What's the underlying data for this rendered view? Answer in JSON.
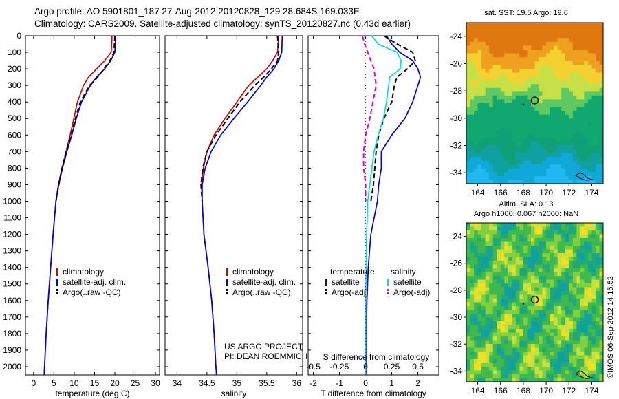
{
  "header": {
    "line1": "Argo profile: AO 5901801_187 27-Aug-2012 20120828_129 28.684S 169.033E",
    "line2": "Climatology: CARS2009. Satellite-adjusted climatology: synTS_20120827.nc (0.43d earlier)"
  },
  "stamp": "©IMOS 06-Sep-2012 14:15:52",
  "colors": {
    "red": "#e00000",
    "blue": "#0000e0",
    "black": "#000000",
    "cyan": "#00e0e0",
    "magenta": "#e000e0"
  },
  "chart_data": [
    {
      "type": "line",
      "name": "temperature",
      "xlabel": "temperature (deg C)",
      "ylabel": "",
      "xlim": [
        -2,
        31
      ],
      "ylim": [
        2050,
        0
      ],
      "xticks": [
        "0",
        "5",
        "10",
        "15",
        "20",
        "25",
        "30"
      ],
      "yticks": [
        "0",
        "100",
        "200",
        "300",
        "400",
        "500",
        "600",
        "700",
        "800",
        "900",
        "1000",
        "1100",
        "1200",
        "1300",
        "1400",
        "1500",
        "1600",
        "1700",
        "1800",
        "1900",
        "2000"
      ],
      "legend": [
        "climatology",
        "satellite-adj. clim.",
        "Argo(..raw -QC)"
      ],
      "series": [
        {
          "name": "climatology",
          "color": "red",
          "dash": false,
          "depth": [
            0,
            100,
            150,
            200,
            250,
            300,
            400,
            500,
            600,
            700,
            800,
            900,
            1000,
            1200,
            1400,
            1600,
            1800,
            2000,
            2050
          ],
          "values": [
            19.3,
            19.1,
            17.5,
            15.5,
            13.5,
            12.3,
            10.8,
            9.9,
            9.0,
            8.0,
            7.0,
            6.1,
            5.5,
            4.8,
            4.2,
            3.6,
            3.1,
            2.7,
            2.6
          ]
        },
        {
          "name": "satellite-adj. clim.",
          "color": "blue",
          "dash": false,
          "depth": [
            0,
            100,
            150,
            200,
            250,
            300,
            400,
            500,
            600,
            700,
            800,
            900,
            1000,
            1200,
            1400,
            1600,
            1800,
            2000,
            2050
          ],
          "values": [
            20.2,
            20.0,
            19.0,
            17.5,
            15.5,
            14.0,
            11.8,
            10.5,
            9.4,
            8.2,
            7.1,
            6.2,
            5.5,
            4.8,
            4.2,
            3.6,
            3.1,
            2.7,
            2.6
          ]
        },
        {
          "name": "Argo(..raw -QC)",
          "color": "black",
          "dash": true,
          "depth": [
            0,
            100,
            150,
            200,
            250,
            300,
            400,
            500,
            600,
            700,
            800,
            900,
            1000
          ],
          "values": [
            20.0,
            19.8,
            18.8,
            17.3,
            15.8,
            13.8,
            11.5,
            10.3,
            9.2,
            8.0,
            7.0,
            6.2,
            5.5
          ]
        }
      ]
    },
    {
      "type": "line",
      "name": "salinity",
      "xlabel": "salinity",
      "xlim": [
        33.8,
        36.1
      ],
      "ylim": [
        2050,
        0
      ],
      "xticks": [
        "34",
        "34.5",
        "35",
        "35.5",
        "36"
      ],
      "legend": [
        "climatology",
        "satellite-adj. clim.",
        "Argo(..raw -QC)"
      ],
      "annotation": [
        "US ARGO PROJECT",
        "PI: DEAN ROEMMICH"
      ],
      "series": [
        {
          "name": "climatology",
          "color": "red",
          "dash": false,
          "depth": [
            0,
            100,
            150,
            200,
            250,
            300,
            400,
            500,
            600,
            700,
            800,
            900,
            1000,
            1200,
            1400,
            1600,
            1800,
            2000,
            2050
          ],
          "values": [
            35.7,
            35.68,
            35.6,
            35.5,
            35.35,
            35.2,
            35.0,
            34.8,
            34.62,
            34.5,
            34.44,
            34.41,
            34.42,
            34.45,
            34.52,
            34.58,
            34.62,
            34.65,
            34.66
          ]
        },
        {
          "name": "satellite-adj. clim.",
          "color": "blue",
          "dash": false,
          "depth": [
            0,
            100,
            150,
            200,
            250,
            300,
            400,
            500,
            600,
            700,
            800,
            900,
            1000,
            1200,
            1400,
            1600,
            1800,
            2000,
            2050
          ],
          "values": [
            35.76,
            35.75,
            35.7,
            35.62,
            35.5,
            35.4,
            35.18,
            34.95,
            34.73,
            34.57,
            34.47,
            34.42,
            34.42,
            34.45,
            34.52,
            34.58,
            34.62,
            34.65,
            34.66
          ]
        },
        {
          "name": "Argo(..raw -QC)",
          "color": "black",
          "dash": true,
          "depth": [
            0,
            100,
            150,
            200,
            250,
            300,
            400,
            500,
            600,
            700,
            800,
            900,
            1000
          ],
          "values": [
            35.68,
            35.7,
            35.68,
            35.58,
            35.45,
            35.3,
            35.05,
            34.85,
            34.65,
            34.5,
            34.43,
            34.4,
            34.42
          ]
        }
      ]
    },
    {
      "type": "line",
      "name": "differences",
      "xlabel": "T difference from climatology",
      "xlabel_top": "S difference from climatology",
      "xlim": [
        -2.2,
        2.8
      ],
      "ylim": [
        2050,
        0
      ],
      "xticks": [
        "-2",
        "-1",
        "0",
        "1",
        "2"
      ],
      "sticks": [
        "-0.5",
        "-0.25",
        "0",
        "0.25",
        "0.5"
      ],
      "legend_titles": [
        "temperature",
        "salinity"
      ],
      "legend": [
        "satellite",
        "Argo(-adj)",
        "satellite",
        "Argo(-adj)"
      ],
      "series": [
        {
          "name": "satellite",
          "group": "temperature",
          "color": "blue",
          "dash": false,
          "depth": [
            0,
            50,
            100,
            150,
            200,
            250,
            300,
            400,
            500,
            600,
            700,
            800,
            900,
            1000,
            1200,
            1400,
            1600,
            1800,
            2000,
            2050
          ],
          "values": [
            0.8,
            1.0,
            1.3,
            1.8,
            2.0,
            2.1,
            2.0,
            1.8,
            1.5,
            1.0,
            0.6,
            0.6,
            0.5,
            0.45,
            0.2,
            0.1,
            0.05,
            0.03,
            0.03,
            0.03
          ]
        },
        {
          "name": "Argo(-adj)",
          "group": "temperature",
          "color": "black",
          "dash": true,
          "depth": [
            0,
            50,
            100,
            150,
            200,
            250,
            300,
            400,
            500,
            600,
            700,
            800,
            900,
            1000
          ],
          "values": [
            0.7,
            1.2,
            1.8,
            1.9,
            1.6,
            1.2,
            1.1,
            1.0,
            0.7,
            0.5,
            0.4,
            0.35,
            0.3,
            0.2
          ]
        },
        {
          "name": "satellite",
          "group": "salinity",
          "color": "cyan",
          "dash": false,
          "depth": [
            0,
            50,
            100,
            150,
            200,
            250,
            300,
            400,
            500,
            600,
            700,
            800,
            900,
            1000,
            1200,
            1400,
            1600,
            1800,
            2000,
            2050
          ],
          "values": [
            0.06,
            0.12,
            0.3,
            0.34,
            0.33,
            0.23,
            0.22,
            0.2,
            0.17,
            0.12,
            0.08,
            0.06,
            0.04,
            0.02,
            0.01,
            0.005,
            0.0,
            0.0,
            0.0,
            0.0
          ]
        },
        {
          "name": "Argo(-adj)",
          "group": "salinity",
          "color": "magenta",
          "dash": true,
          "depth": [
            0,
            50,
            100,
            150,
            200,
            250,
            300,
            400,
            500,
            600,
            700,
            800,
            900,
            1000
          ],
          "values": [
            -0.03,
            -0.01,
            0.02,
            0.05,
            0.08,
            0.09,
            0.1,
            0.07,
            0.04,
            0.0,
            -0.02,
            -0.02,
            0.0,
            0.0
          ]
        }
      ]
    },
    {
      "type": "heatmap",
      "name": "sst_map",
      "title": "sat. SST: 19.5 Argo: 19.6",
      "xticks": [
        "164",
        "166",
        "168",
        "170",
        "172",
        "174"
      ],
      "yticks": [
        "-24",
        "-26",
        "-28",
        "-30",
        "-32",
        "-34"
      ],
      "float_lon": 169.0,
      "float_lat": -28.7
    },
    {
      "type": "heatmap",
      "name": "sla_map",
      "title": "Altim. SLA: 0.13",
      "subtitle": "Argo h1000: 0.067 h2000: NaN",
      "xticks": [
        "164",
        "166",
        "168",
        "170",
        "172",
        "174"
      ],
      "yticks": [
        "-24",
        "-26",
        "-28",
        "-30",
        "-32",
        "-34"
      ],
      "float_lon": 169.0,
      "float_lat": -28.7
    }
  ]
}
